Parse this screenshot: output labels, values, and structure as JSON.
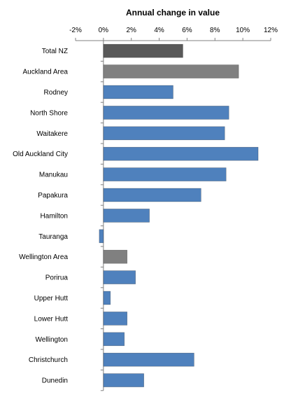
{
  "chart_data": {
    "type": "bar",
    "orientation": "horizontal",
    "title": "Annual change in value",
    "xlabel": "",
    "ylabel": "",
    "xlim": [
      -2,
      12
    ],
    "x_ticks": [
      -2,
      0,
      2,
      4,
      6,
      8,
      10,
      12
    ],
    "x_tick_labels": [
      "-2%",
      "0%",
      "2%",
      "4%",
      "6%",
      "8%",
      "10%",
      "12%"
    ],
    "x_axis_position": "top",
    "grid": false,
    "legend": "none",
    "colors": {
      "total": "#595959",
      "area": "#808080",
      "city": "#4F81BD"
    },
    "categories": [
      "Total NZ",
      "Auckland Area",
      "Rodney",
      "North Shore",
      "Waitakere",
      "Old Auckland City",
      "Manukau",
      "Papakura",
      "Hamilton",
      "Tauranga",
      "Wellington Area",
      "Porirua",
      "Upper Hutt",
      "Lower Hutt",
      "Wellington",
      "Christchurch",
      "Dunedin"
    ],
    "values": [
      5.7,
      9.7,
      5.0,
      9.0,
      8.7,
      11.1,
      8.8,
      7.0,
      3.3,
      -0.3,
      1.7,
      2.3,
      0.5,
      1.7,
      1.5,
      6.5,
      2.9
    ],
    "bar_kind": [
      "total",
      "area",
      "city",
      "city",
      "city",
      "city",
      "city",
      "city",
      "city",
      "city",
      "area",
      "city",
      "city",
      "city",
      "city",
      "city",
      "city"
    ]
  }
}
